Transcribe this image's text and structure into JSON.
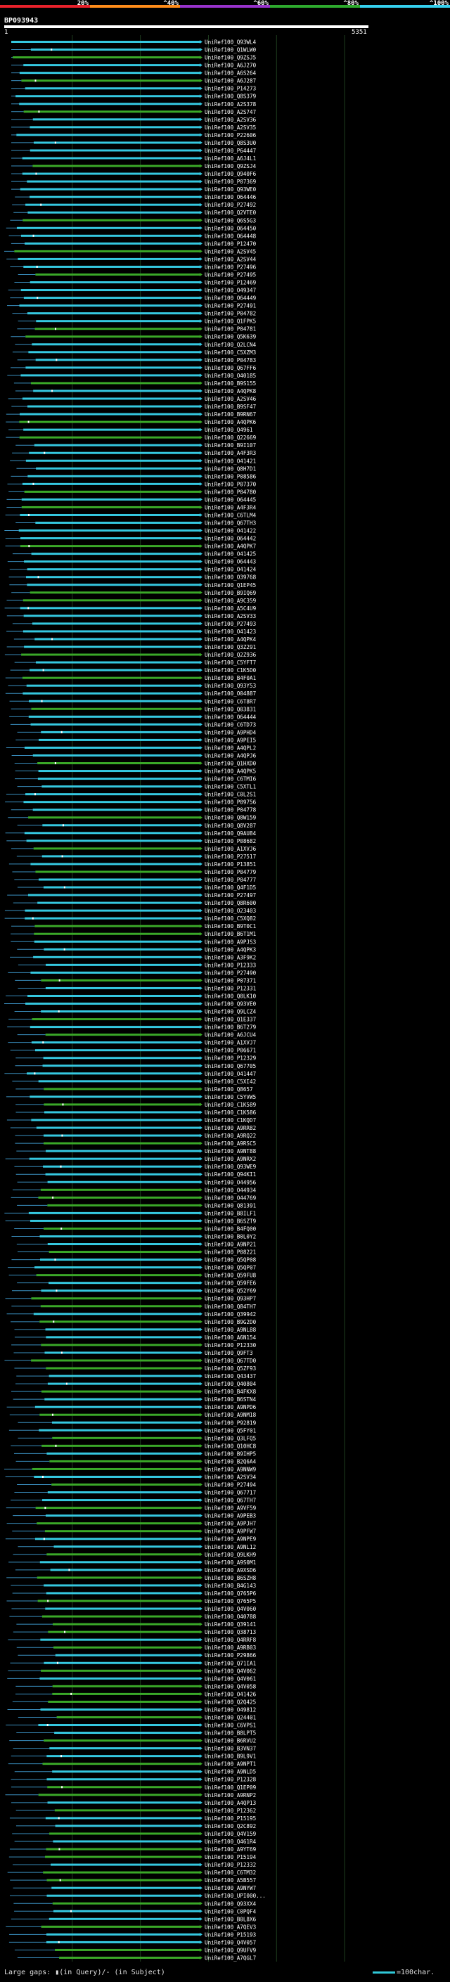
{
  "chart_data": {
    "type": "alignment-overview",
    "title": "BP093943",
    "query_start": "1",
    "query_end": "5351",
    "legend": {
      "scale_labels": [
        "20%",
        "^40%",
        "^60%",
        "^80%",
        "^100%"
      ],
      "colors": [
        "#e8212b",
        "#ff8c1a",
        "#9933cc",
        "#2eaa2e",
        "#35d0ee"
      ]
    },
    "colors": {
      "high_identity": "#35c8e0",
      "mid_identity": "#3aa828",
      "gap_line": "#3a8fc0",
      "grid": "#1f3d1f",
      "marker_query": "#ffffff",
      "marker_subject": "#ffcc33"
    },
    "subjects": [
      "UniRef100_Q93WL4",
      "UniRef100_Q1WLW0",
      "UniRef100_Q9ZSJ5",
      "UniRef100_A6J270",
      "UniRef100_A6S264",
      "UniRef100_A6J287",
      "UniRef100_P14273",
      "UniRef100_Q8S379",
      "UniRef100_A2S378",
      "UniRef100_A2S747",
      "UniRef100_A2SV36",
      "UniRef100_A2SV35",
      "UniRef100_P22606",
      "UniRef100_Q8S3U0",
      "UniRef100_P64447",
      "UniRef100_A6J4L1",
      "UniRef100_Q9ZSJ4",
      "UniRef100_Q940F6",
      "UniRef100_P07369",
      "UniRef100_Q93WE0",
      "UniRef100_O64446",
      "UniRef100_P27492",
      "UniRef100_Q2VTE0",
      "UniRef100_Q6S5G3",
      "UniRef100_O64450",
      "UniRef100_O64448",
      "UniRef100_P12470",
      "UniRef100_A2SV45",
      "UniRef100_A2SV44",
      "UniRef100_P27496",
      "UniRef100_P27495",
      "UniRef100_P12469",
      "UniRef100_O49347",
      "UniRef100_O64449",
      "UniRef100_P27491",
      "UniRef100_P04782",
      "UniRef100_Q1FPK5",
      "UniRef100_P04781",
      "UniRef100_Q5K639",
      "UniRef100_Q2LCN4",
      "UniRef100_C5XZM3",
      "UniRef100_P04783",
      "UniRef100_Q67FF6",
      "UniRef100_O40185",
      "UniRef100_B9S155",
      "UniRef100_A4QPK8",
      "UniRef100_A2SV46",
      "UniRef100_B9SF47",
      "UniRef100_B9RN67",
      "UniRef100_A4QPK6",
      "UniRef100_Q4961",
      "UniRef100_Q22669",
      "UniRef100_B9I107",
      "UniRef100_A4F3R3",
      "UniRef100_O41421",
      "UniRef100_Q8H7D1",
      "UniRef100_P08586",
      "UniRef100_P07370",
      "UniRef100_P04780",
      "UniRef100_O64445",
      "UniRef100_A4F3R4",
      "UniRef100_C6TLM4",
      "UniRef100_Q67TH3",
      "UniRef100_O41422",
      "UniRef100_O64442",
      "UniRef100_A4QPK7",
      "UniRef100_O41425",
      "UniRef100_O64443",
      "UniRef100_O41424",
      "UniRef100_O39768",
      "UniRef100_Q1EP45",
      "UniRef100_B9IQ69",
      "UniRef100_A9C359",
      "UniRef100_A5C4U9",
      "UniRef100_A2SV33",
      "UniRef100_P27493",
      "UniRef100_O41423",
      "UniRef100_A4QPK4",
      "UniRef100_Q3Z291",
      "UniRef100_Q2Z936",
      "UniRef100_C5YFT7",
      "UniRef100_C1K5D0",
      "UniRef100_B4F0A1",
      "UniRef100_Q93Y53",
      "UniRef100_O04887",
      "UniRef100_C6T8R7",
      "UniRef100_Q03831",
      "UniRef100_O64444",
      "UniRef100_C6TD73",
      "UniRef100_A9PHD4",
      "UniRef100_A9PEI5",
      "UniRef100_A4QPL2",
      "UniRef100_A4QPJ6",
      "UniRef100_Q1HXD0",
      "UniRef100_A4QPK5",
      "UniRef100_C6TMI6",
      "UniRef100_C5XTL1",
      "UniRef100_C0L2S1",
      "UniRef100_P09756",
      "UniRef100_P04778",
      "UniRef100_Q8W159",
      "UniRef100_Q8V287",
      "UniRef100_Q9AU84",
      "UniRef100_P08682",
      "UniRef100_A1XVJ6",
      "UniRef100_P27517",
      "UniRef100_P13851",
      "UniRef100_P04779",
      "UniRef100_P04777",
      "UniRef100_Q4F1D5",
      "UniRef100_P27497",
      "UniRef100_Q8R600",
      "UniRef100_O23403",
      "UniRef100_C5XQ82",
      "UniRef100_B9T0C1",
      "UniRef100_B6T1M1",
      "UniRef100_A9PJS3",
      "UniRef100_A4QPK3",
      "UniRef100_A3F9K2",
      "UniRef100_P12333",
      "UniRef100_P27490",
      "UniRef100_P07371",
      "UniRef100_P12331",
      "UniRef100_Q0LK10",
      "UniRef100_Q93VE0",
      "UniRef100_Q9LCZ4",
      "UniRef100_Q1E337",
      "UniRef100_B6T279",
      "UniRef100_A6JCU4",
      "UniRef100_A1XVJ7",
      "UniRef100_P06671",
      "UniRef100_P12329",
      "UniRef100_Q67705",
      "UniRef100_O41447",
      "UniRef100_C5XI42",
      "UniRef100_Q8657",
      "UniRef100_C5YVW5",
      "UniRef100_C1K589",
      "UniRef100_C1K586",
      "UniRef100_C1KQD7",
      "UniRef100_A9RR82",
      "UniRef100_A9RQ22",
      "UniRef100_A9RSC5",
      "UniRef100_A9NT88",
      "UniRef100_A9NRX2",
      "UniRef100_Q93WE9",
      "UniRef100_Q94KI1",
      "UniRef100_O44956",
      "UniRef100_O44934",
      "UniRef100_O44769",
      "UniRef100_Q81391",
      "UniRef100_B8ILF1",
      "UniRef100_B6SZT9",
      "UniRef100_B4FQ00",
      "UniRef100_B0L0Y2",
      "UniRef100_A9NP21",
      "UniRef100_P08221",
      "UniRef100_Q5QP08",
      "UniRef100_Q5QP07",
      "UniRef100_Q59FU8",
      "UniRef100_Q59FE6",
      "UniRef100_Q52Y69",
      "UniRef100_Q93HP7",
      "UniRef100_Q84TH7",
      "UniRef100_Q39942",
      "UniRef100_B9G2D0",
      "UniRef100_A9NL88",
      "UniRef100_A6N154",
      "UniRef100_P12330",
      "UniRef100_Q9FT3",
      "UniRef100_Q67TD0",
      "UniRef100_Q5ZF93",
      "UniRef100_Q43437",
      "UniRef100_Q40804",
      "UniRef100_B4FKX8",
      "UniRef100_B6STN4",
      "UniRef100_A9NPD6",
      "UniRef100_A9NM18",
      "UniRef100_P92819",
      "UniRef100_Q5FY01",
      "UniRef100_Q3LFQ5",
      "UniRef100_Q10HC8",
      "UniRef100_B9IHP5",
      "UniRef100_B2Q6A4",
      "UniRef100_A9NNW9",
      "UniRef100_A2SV34",
      "UniRef100_P27494",
      "UniRef100_Q67717",
      "UniRef100_Q67TH7",
      "UniRef100_A9VF59",
      "UniRef100_A9PEB3",
      "UniRef100_A9PJH7",
      "UniRef100_A9PFW7",
      "UniRef100_A9NPE9",
      "UniRef100_A9NL12",
      "UniRef100_Q9LKH9",
      "UniRef100_A9S0M1",
      "UniRef100_A9XSD6",
      "UniRef100_B6SZH8",
      "UniRef100_B4G143",
      "UniRef100_Q765P6",
      "UniRef100_Q765P5",
      "UniRef100_Q4V060",
      "UniRef100_O40788",
      "UniRef100_Q39141",
      "UniRef100_Q38713",
      "UniRef100_Q4RRF8",
      "UniRef100_A9RB03",
      "UniRef100_P29866",
      "UniRef100_Q71IA1",
      "UniRef100_Q4V062",
      "UniRef100_Q4V061",
      "UniRef100_Q4V058",
      "UniRef100_O41426",
      "UniRef100_Q2Q425",
      "UniRef100_O49812",
      "UniRef100_Q24401",
      "UniRef100_C6VPS1",
      "UniRef100_B8LPT5",
      "UniRef100_B6RVU2",
      "UniRef100_B3VN37",
      "UniRef100_B9L9V1",
      "UniRef100_A9NPT1",
      "UniRef100_A9NLD5",
      "UniRef100_P12328",
      "UniRef100_Q1EP09",
      "UniRef100_A9RNP2",
      "UniRef100_A4QP13",
      "UniRef100_P12362",
      "UniRef100_P15195",
      "UniRef100_Q2C892",
      "UniRef100_Q4V159",
      "UniRef100_Q461R4",
      "UniRef100_A9YT69",
      "UniRef100_P15194",
      "UniRef100_P12332",
      "UniRef100_C6TM32",
      "UniRef100_A5B557",
      "UniRef100_A9NYW7",
      "UniRef100_UPI000...",
      "UniRef100_Q93XX4",
      "UniRef100_C0PQF4",
      "UniRef100_B0L8X6",
      "UniRef100_A7QEV3",
      "UniRef100_P15193",
      "UniRef100_Q4V057",
      "UniRef100_Q9UFV9",
      "UniRef100_A7QGL7"
    ],
    "footer": {
      "gaps_label": "Large gaps: ▮(in Query)/- (in Subject)",
      "scale_label": "=100char."
    }
  }
}
